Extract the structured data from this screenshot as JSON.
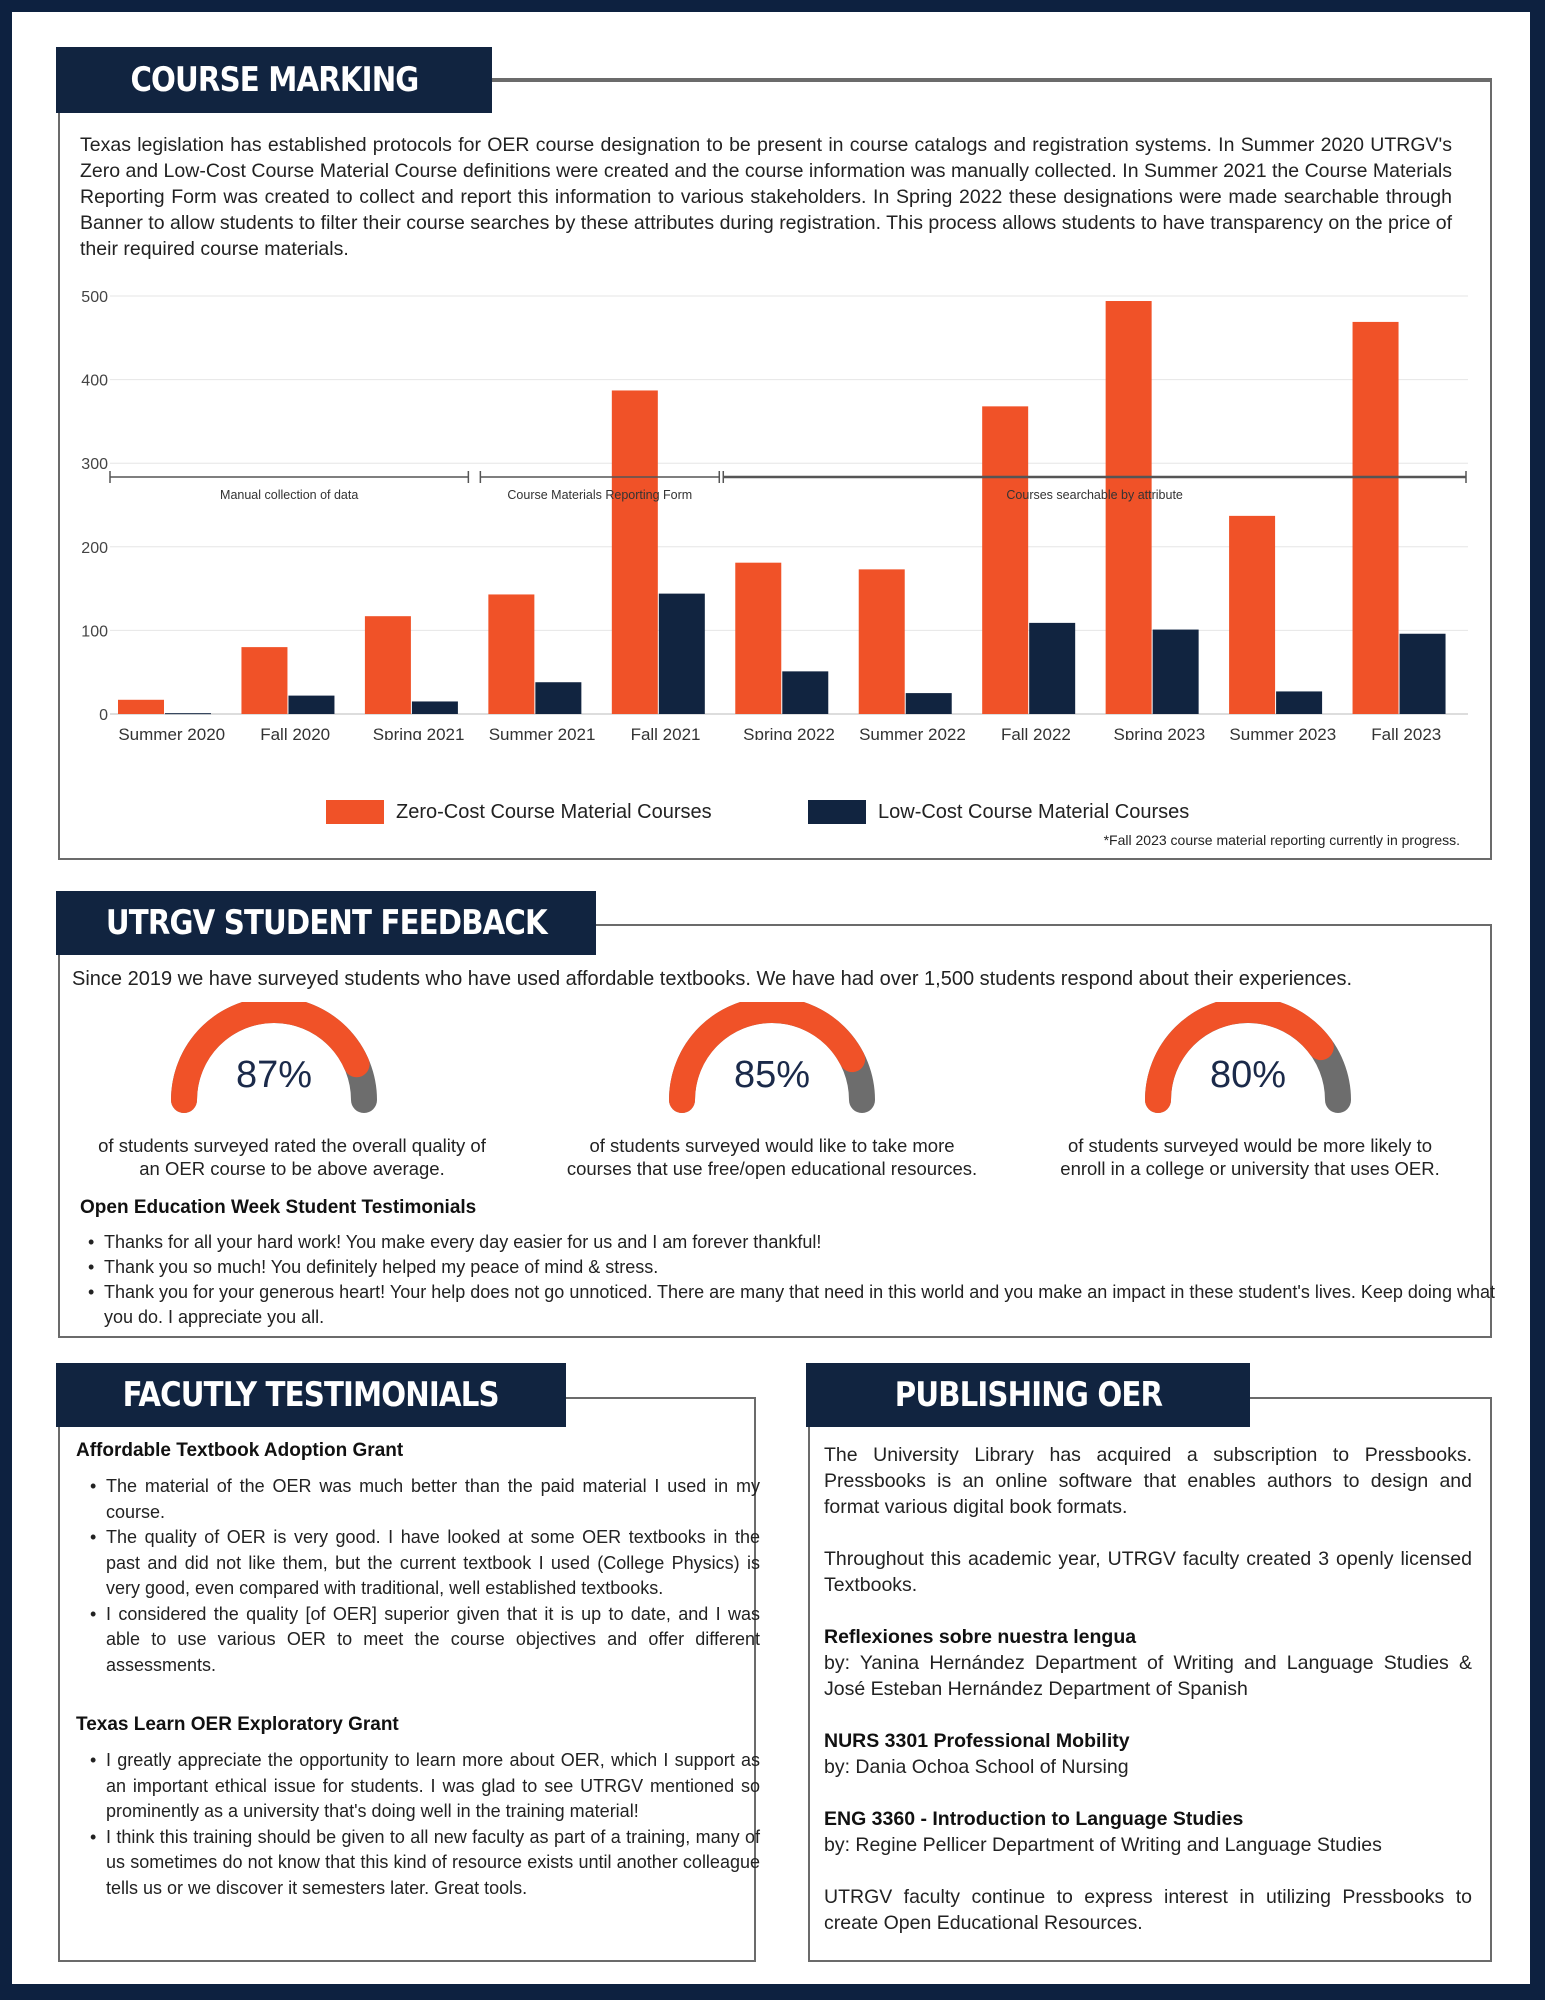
{
  "course_marking": {
    "heading": "COURSE MARKING",
    "intro": "Texas legislation has established protocols for OER course designation to be present in course catalogs and registration systems. In Summer 2020 UTRGV's Zero and Low-Cost Course Material Course definitions were created and the course information was manually collected. In Summer 2021 the Course Materials Reporting Form was created to collect and report this information to various stakeholders. In Spring 2022 these designations were made searchable through Banner to allow students to filter their course searches by these attributes during registration. This process allows students to have transparency on the price of their required course materials.",
    "phases": [
      "Manual collection of data",
      "Course Materials Reporting Form",
      "Courses searchable by attribute"
    ],
    "note": "*Fall 2023 course material reporting currently in progress."
  },
  "chart_data": {
    "type": "bar",
    "categories": [
      "Summer 2020",
      "Fall 2020",
      "Spring 2021",
      "Summer 2021",
      "Fall 2021",
      "Spring 2022",
      "Summer 2022",
      "Fall 2022",
      "Spring 2023",
      "Summer 2023",
      "Fall 2023"
    ],
    "series": [
      {
        "name": "Zero-Cost Course Material Courses",
        "color": "#f05228",
        "values": [
          17,
          80,
          117,
          143,
          387,
          181,
          173,
          368,
          494,
          237,
          469
        ]
      },
      {
        "name": "Low-Cost Course Material Courses",
        "color": "#112440",
        "values": [
          1,
          22,
          15,
          38,
          144,
          51,
          25,
          109,
          101,
          27,
          96
        ]
      }
    ],
    "yticks": [
      0,
      100,
      200,
      300,
      400,
      500
    ],
    "ylim": [
      0,
      500
    ],
    "grid": true,
    "legend": "bottom-center"
  },
  "feedback": {
    "heading": "UTRGV STUDENT FEEDBACK",
    "intro": "Since 2019 we have surveyed students who have used affordable textbooks. We have had over 1,500 students respond about their experiences.",
    "gauges": [
      {
        "label": "87%",
        "value": 0.87,
        "caption_1": "of students surveyed rated the overall quality of",
        "caption_2": "an OER course to be above average."
      },
      {
        "label": "85%",
        "value": 0.85,
        "caption_1": "of students surveyed would like to take more",
        "caption_2": "courses that use free/open educational resources."
      },
      {
        "label": "80%",
        "value": 0.8,
        "caption_1": "of students surveyed would be more likely to",
        "caption_2": "enroll in a college or university that uses OER."
      }
    ],
    "testimonials_title": "Open Education Week Student Testimonials",
    "testimonials": [
      "Thanks for all your hard work! You make every day easier for us and I am forever thankful!",
      "Thank you so much! You definitely helped my peace of mind & stress.",
      "Thank you for your generous heart! Your help does not go unnoticed. There are many that need in this world and you make an impact in these student's lives. Keep doing what you do. I appreciate you all."
    ]
  },
  "faculty": {
    "heading": "FACUTLY TESTIMONIALS",
    "grant1_title": "Affordable Textbook Adoption Grant",
    "grant1_items": [
      "The material of the OER was much better than the paid material I used in my course.",
      "The quality of OER is very good. I have looked at some OER textbooks in the past and did not like them, but the current textbook I used (College Physics) is very good, even compared with traditional, well established textbooks.",
      "I considered the quality [of OER] superior given that it is up to date, and I was able to use various OER to meet the course objectives and offer different assessments."
    ],
    "grant2_title": "Texas Learn OER Exploratory Grant",
    "grant2_items": [
      "I greatly appreciate the opportunity to learn more about OER, which I support as an important ethical issue for students. I was glad to see UTRGV mentioned so prominently as a university that's doing well in the training material!",
      "I think this training should be given to all new faculty as part of a training, many of us sometimes do not know that this kind of resource exists until another colleague tells us or we discover it semesters later. Great tools."
    ]
  },
  "publishing": {
    "heading": "PUBLISHING OER",
    "p1": "The University Library has acquired a subscription to Pressbooks. Pressbooks is an online software that enables authors to design and format various digital book formats.",
    "p2": "Throughout this academic year, UTRGV faculty created 3 openly licensed Textbooks.",
    "books": [
      {
        "title": "Reflexiones sobre nuestra lengua",
        "by": "by: Yanina Hernández Department of Writing and Language Studies & José Esteban Hernández Department of Spanish"
      },
      {
        "title": "NURS 3301 Professional Mobility",
        "by": "by: Dania Ochoa School of Nursing"
      },
      {
        "title": "ENG 3360 - Introduction to Language Studies",
        "by": "by: Regine Pellicer Department of Writing and Language Studies"
      }
    ],
    "p3": "UTRGV faculty continue to express interest in utilizing Pressbooks to create Open Educational Resources."
  }
}
